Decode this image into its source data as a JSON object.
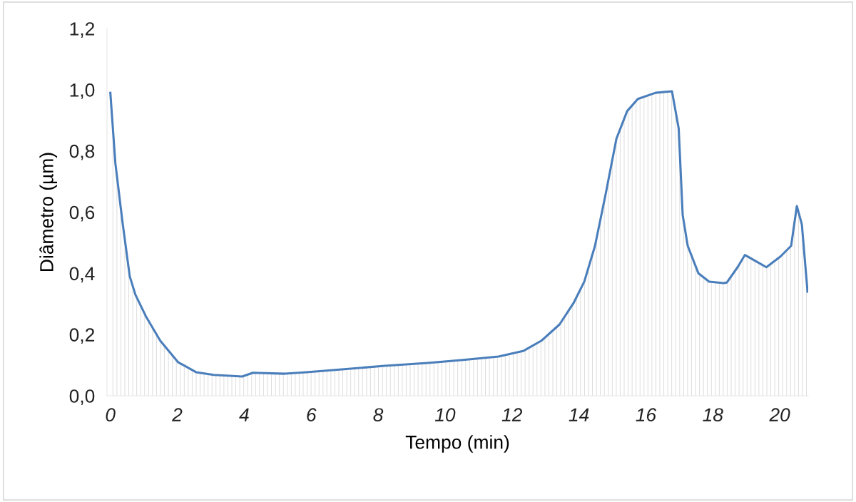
{
  "chart_data": {
    "type": "area",
    "xlabel": "Tempo (min)",
    "ylabel": "Diâmetro (µm)",
    "xlim": [
      -0.1,
      20.85
    ],
    "ylim": [
      0,
      1.2
    ],
    "xticks": [
      0,
      2,
      4,
      6,
      8,
      10,
      12,
      14,
      16,
      18,
      20
    ],
    "yticks": [
      {
        "value": 0,
        "label": "0,0"
      },
      {
        "value": 0.2,
        "label": "0,2"
      },
      {
        "value": 0.4,
        "label": "0,4"
      },
      {
        "value": 0.6,
        "label": "0,6"
      },
      {
        "value": 0.8,
        "label": "0,8"
      },
      {
        "value": 1.0,
        "label": "1,0"
      },
      {
        "value": 1.2,
        "label": "1,2"
      }
    ],
    "grid": false,
    "legend": false,
    "marker": "none",
    "line_style": "solid",
    "x": [
      0,
      0.15,
      0.36,
      0.58,
      0.75,
      1.06,
      1.49,
      2.02,
      2.56,
      3.09,
      3.94,
      4.26,
      5.22,
      5.86,
      6.92,
      8.2,
      9.48,
      10.54,
      11.6,
      12.35,
      12.88,
      13.42,
      13.84,
      14.16,
      14.48,
      14.8,
      15.12,
      15.44,
      15.76,
      16.29,
      16.78,
      16.98,
      17.1,
      17.25,
      17.57,
      17.89,
      18.32,
      18.42,
      18.74,
      18.96,
      19.28,
      19.6,
      20.02,
      20.34,
      20.51,
      20.66,
      20.83
    ],
    "series": [
      {
        "color": "#4a7ebb",
        "values": [
          0.99,
          0.76,
          0.57,
          0.39,
          0.33,
          0.26,
          0.18,
          0.11,
          0.077,
          0.068,
          0.063,
          0.075,
          0.072,
          0.077,
          0.086,
          0.098,
          0.107,
          0.117,
          0.128,
          0.147,
          0.18,
          0.233,
          0.303,
          0.373,
          0.49,
          0.66,
          0.84,
          0.93,
          0.97,
          0.99,
          0.995,
          0.874,
          0.59,
          0.49,
          0.4,
          0.373,
          0.368,
          0.37,
          0.42,
          0.46,
          0.44,
          0.42,
          0.455,
          0.49,
          0.62,
          0.56,
          0.34
        ]
      }
    ]
  }
}
